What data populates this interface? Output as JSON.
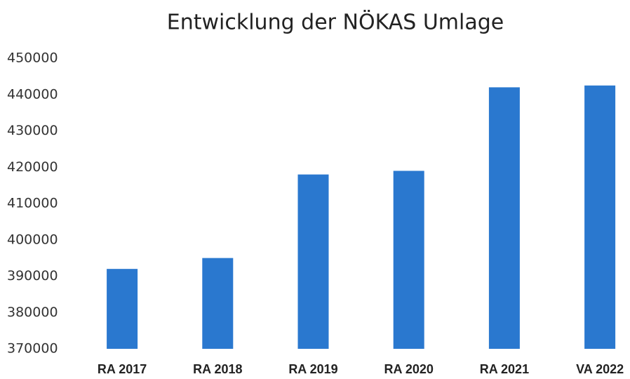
{
  "chart_data": {
    "type": "bar",
    "title": "Entwicklung der NÖKAS Umlage",
    "categories": [
      "RA 2017",
      "RA 2018",
      "RA 2019",
      "RA 2020",
      "RA 2021",
      "VA 2022"
    ],
    "values": [
      392000,
      395000,
      418000,
      419000,
      442000,
      442500
    ],
    "color": "#2a78cf",
    "ylim": [
      370000,
      450000
    ],
    "yticks": [
      370000,
      380000,
      390000,
      400000,
      410000,
      420000,
      430000,
      440000,
      450000
    ],
    "grid": false
  }
}
